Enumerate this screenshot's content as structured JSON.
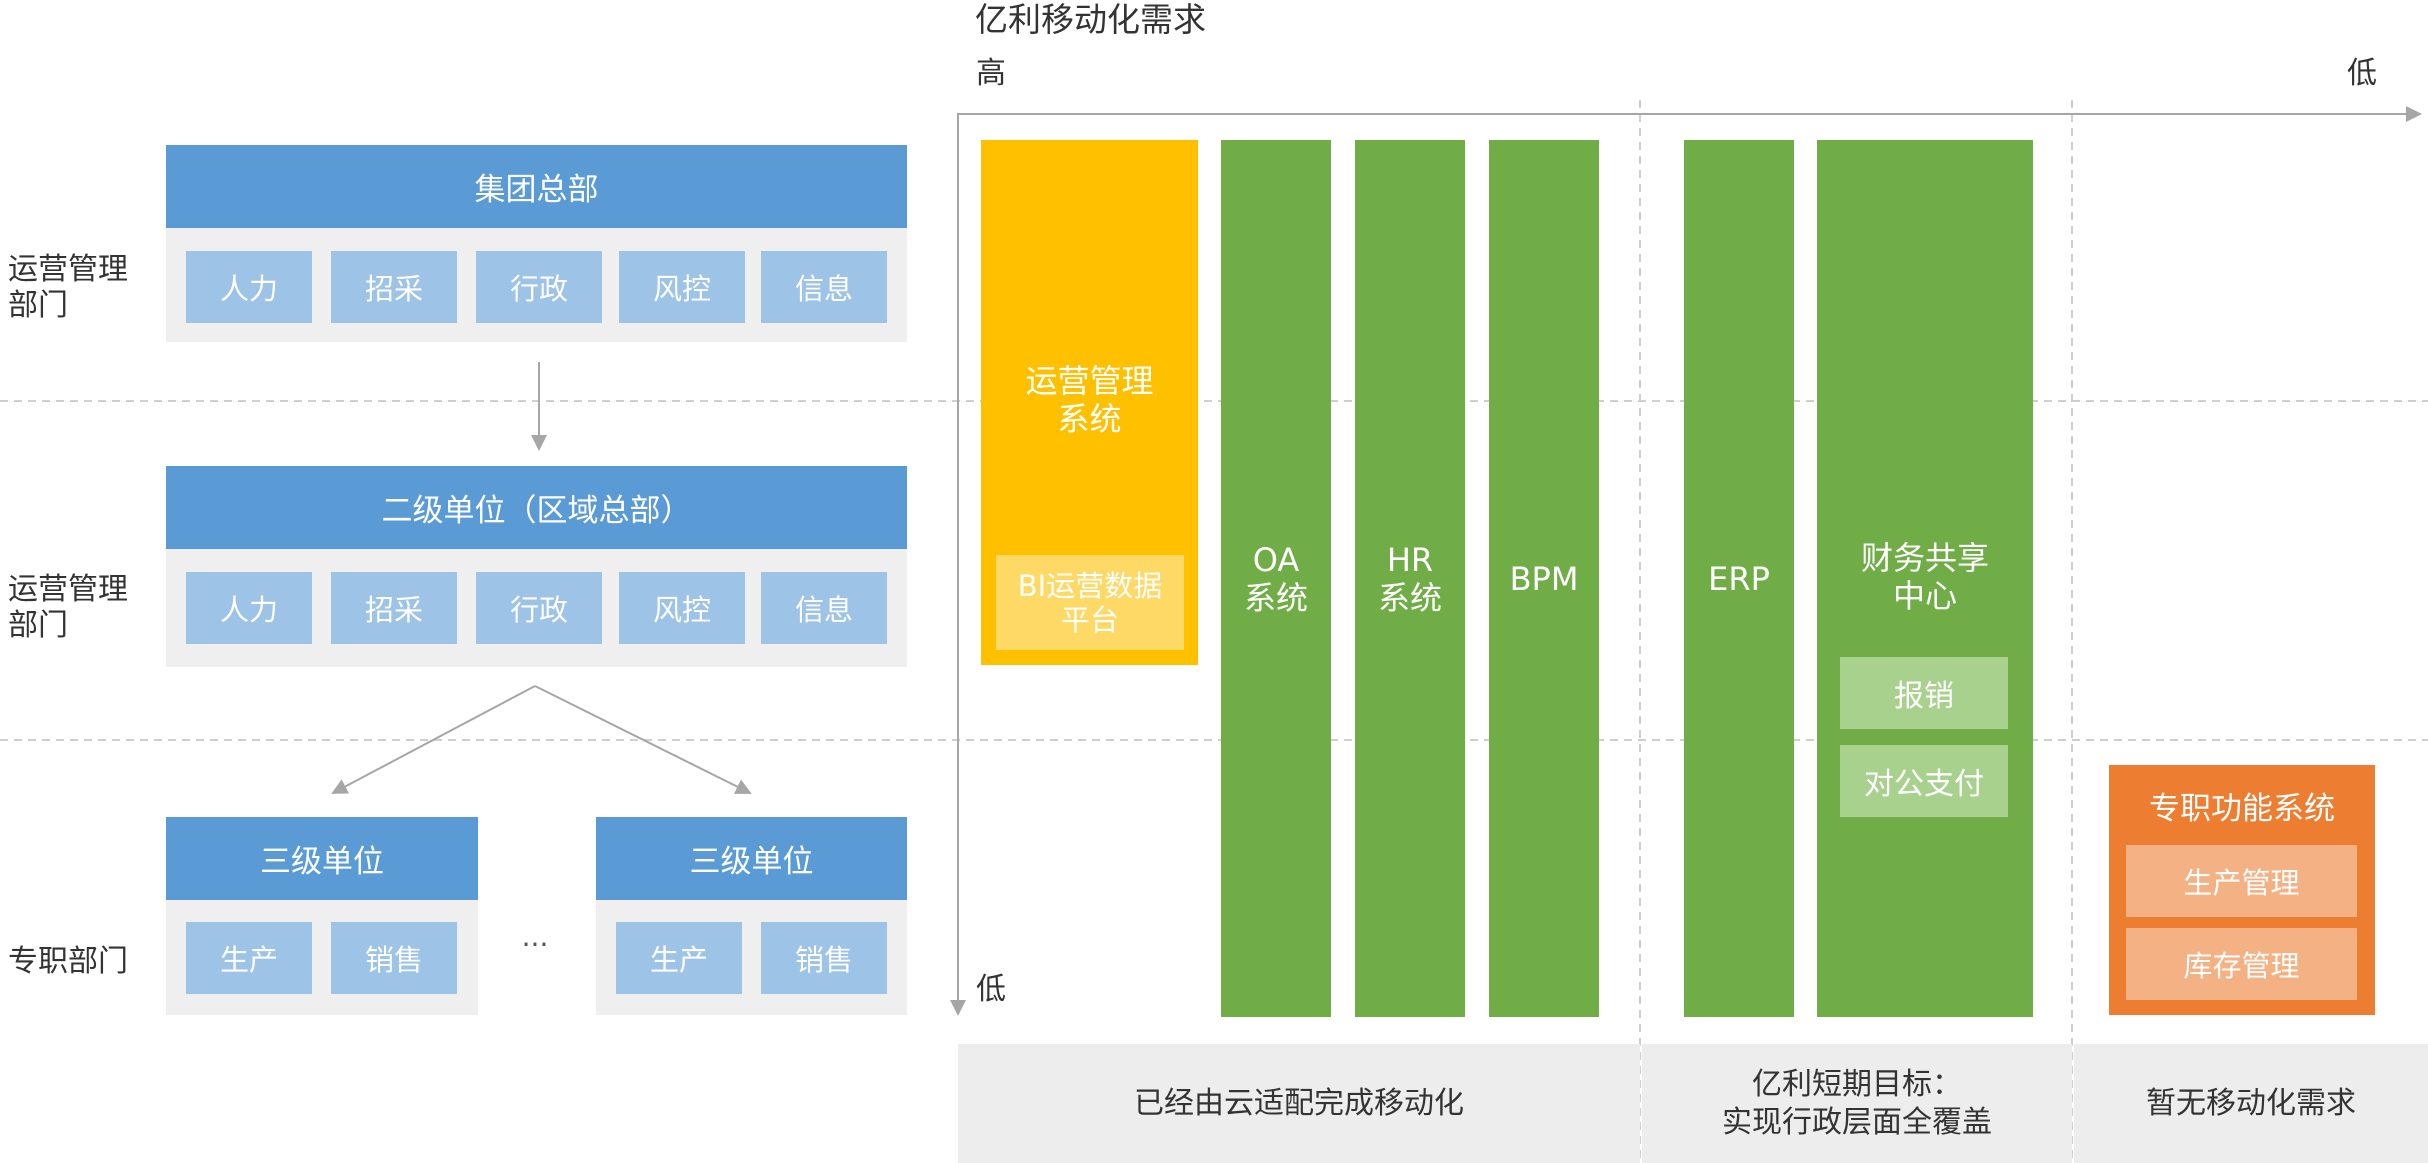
{
  "header": {
    "title": "亿利移动化需求",
    "high": "高",
    "low_right": "低",
    "low_bottom": "低"
  },
  "left": {
    "side_labels": [
      "运营管理\n部门",
      "运营管理\n部门",
      "专职部门"
    ],
    "hq": {
      "title": "集团总部",
      "cells": [
        "人力",
        "招采",
        "行政",
        "风控",
        "信息"
      ]
    },
    "level2": {
      "title": "二级单位（区域总部）",
      "cells": [
        "人力",
        "招采",
        "行政",
        "风控",
        "信息"
      ]
    },
    "level3_left": {
      "title": "三级单位",
      "cells": [
        "生产",
        "销售"
      ]
    },
    "ellipsis": "...",
    "level3_right": {
      "title": "三级单位",
      "cells": [
        "生产",
        "销售"
      ]
    }
  },
  "systems": {
    "ops": {
      "title": "运营管理\n系统",
      "sub": "BI运营数据\n平台"
    },
    "oa": "OA\n系统",
    "hr": "HR\n系统",
    "bpm": "BPM",
    "erp": "ERP",
    "finance": {
      "title": "财务共享\n中心",
      "items": [
        "报销",
        "对公支付"
      ]
    },
    "special": {
      "title": "专职功能系统",
      "items": [
        "生产管理",
        "库存管理"
      ]
    }
  },
  "bottom": {
    "done": "已经由云适配完成移动化",
    "target": "亿利短期目标：\n实现行政层面全覆盖",
    "none": "暂无移动化需求"
  },
  "colors": {
    "blue_header": "#5b9bd5",
    "blue_cell": "#9dc3e6",
    "panel_gray": "#efefef",
    "yellow": "#ffc000",
    "yellow_light": "#ffd966",
    "green": "#70ad47",
    "green_light": "#a9d18e",
    "orange": "#ed7d31",
    "orange_light": "#f4b183"
  }
}
